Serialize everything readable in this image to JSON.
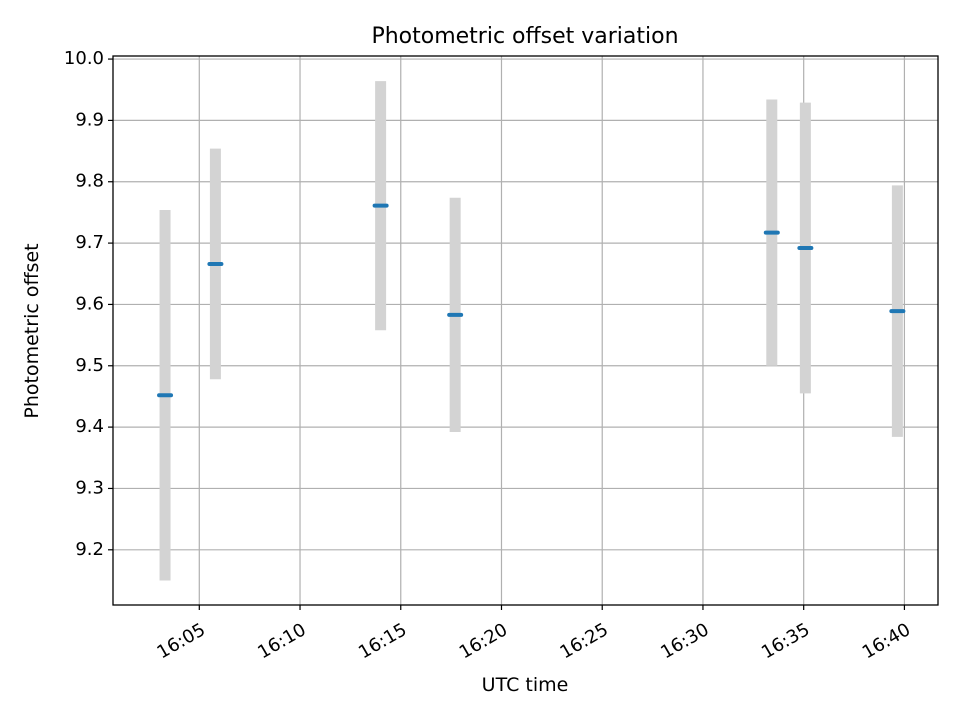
{
  "chart_data": {
    "type": "scatter",
    "title": "Photometric offset variation",
    "xlabel": "UTC time",
    "ylabel": "Photometric offset",
    "x_ticks": [
      "16:05",
      "16:10",
      "16:15",
      "16:20",
      "16:25",
      "16:30",
      "16:35",
      "16:40"
    ],
    "y_ticks": [
      "9.2",
      "9.3",
      "9.4",
      "9.5",
      "9.6",
      "9.7",
      "9.8",
      "9.9",
      "10.0"
    ],
    "xlim": [
      "16:00:43",
      "16:41:40"
    ],
    "ylim": [
      9.11,
      10.005
    ],
    "grid": true,
    "series": [
      {
        "x": [
          "16:03:18",
          "16:05:48",
          "16:14:00",
          "16:17:42",
          "16:33:25",
          "16:35:05",
          "16:39:39"
        ],
        "y": [
          9.452,
          9.666,
          9.761,
          9.583,
          9.717,
          9.692,
          9.589
        ],
        "error": [
          0.302,
          0.188,
          0.203,
          0.191,
          0.217,
          0.237,
          0.205
        ]
      }
    ],
    "colors": {
      "marker": "#1f77b4",
      "errorbar": "#d3d3d3",
      "grid": "#b0b0b0",
      "frame": "#000000"
    }
  }
}
